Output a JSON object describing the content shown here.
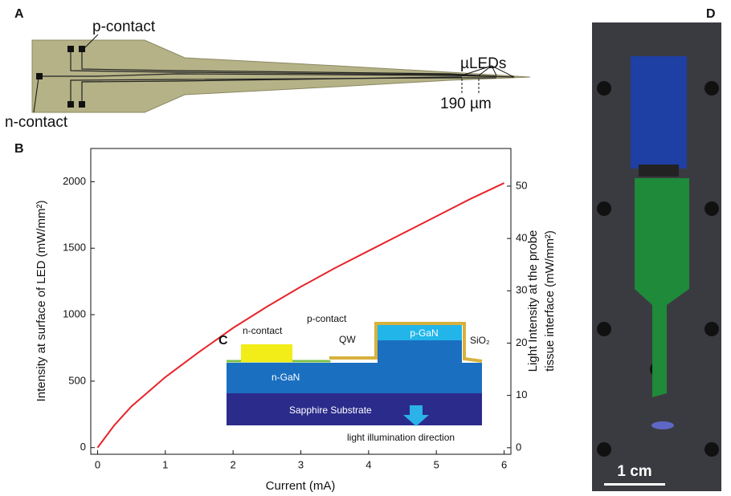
{
  "chart_data": {
    "type": "line",
    "xlabel": "Current (mA)",
    "ylabel": "Intensity at surface of LED (mW/mm²)",
    "y2label": [
      "Light Intensity at the probe",
      "tissue interface (mW/mm²)"
    ],
    "x": [
      0,
      0.25,
      0.5,
      1,
      1.5,
      2,
      2.5,
      3,
      3.5,
      4,
      4.5,
      5,
      5.5,
      6
    ],
    "series": [
      {
        "color": "#e8242a",
        "values": [
          0,
          170,
          310,
          530,
          720,
          900,
          1060,
          1210,
          1350,
          1480,
          1610,
          1740,
          1870,
          1990
        ]
      }
    ],
    "xlim": [
      -0.1,
      6.1
    ],
    "xticks": [
      0,
      1,
      2,
      3,
      4,
      5,
      6
    ],
    "ylim": [
      -50,
      2250
    ],
    "yticks": [
      0,
      500,
      1000,
      1500,
      2000
    ],
    "y2lim": [
      -1.25,
      57.2
    ],
    "y2ticks": [
      0,
      10,
      20,
      30,
      40,
      50
    ],
    "grid": false
  },
  "panel_b_label": "B",
  "panel_a": {
    "label": "A",
    "p_contact": "p-contact",
    "n_contact": "n-contact",
    "uleds": "µLEDs",
    "scale": "190 µm"
  },
  "panel_c": {
    "label": "C",
    "n_contact": "n-contact",
    "p_contact": "p-contact",
    "qw": "QW",
    "p_gan": "p-GaN",
    "sio2": "SiO₂",
    "n_gan": "n-GaN",
    "sapphire": "Sapphire Substrate",
    "direction": "light illumination direction"
  },
  "panel_d": {
    "label": "D",
    "scale": "1 cm"
  }
}
